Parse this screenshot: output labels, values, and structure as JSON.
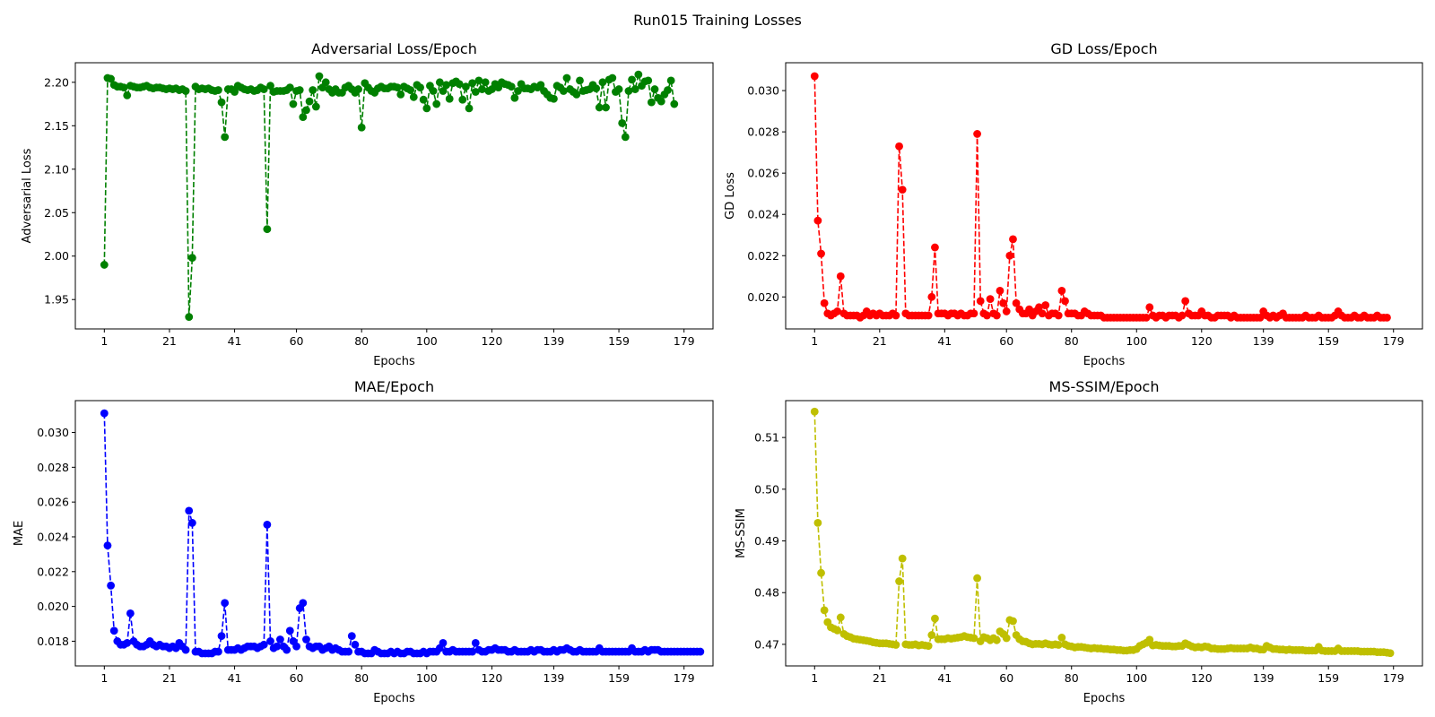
{
  "figure": {
    "title": "Run015 Training Losses"
  },
  "chart_data": [
    {
      "type": "line",
      "title": "Adversarial Loss/Epoch",
      "xlabel": "Epochs",
      "ylabel": "Adversarial Loss",
      "color": "#008000",
      "line_style": "dashed",
      "marker": "circle",
      "xlim": [
        -7.9,
        187.9
      ],
      "ylim": [
        1.9162,
        2.2225
      ],
      "xticks": [
        1,
        21,
        41,
        60,
        80,
        100,
        120,
        139,
        159,
        179
      ],
      "yticks": [
        1.95,
        2.0,
        2.05,
        2.1,
        2.15,
        2.2
      ],
      "ytick_labels": [
        "1.95",
        "2.00",
        "2.05",
        "2.10",
        "2.15",
        "2.20"
      ],
      "series": [
        {
          "values": [
            1.99,
            2.205,
            2.204,
            2.197,
            2.195,
            2.195,
            2.194,
            2.185,
            2.196,
            2.195,
            2.194,
            2.194,
            2.195,
            2.196,
            2.194,
            2.193,
            2.194,
            2.194,
            2.193,
            2.192,
            2.193,
            2.192,
            2.193,
            2.191,
            2.192,
            2.19,
            1.93,
            1.998,
            2.195,
            2.192,
            2.193,
            2.192,
            2.193,
            2.191,
            2.19,
            2.191,
            2.177,
            2.137,
            2.192,
            2.192,
            2.189,
            2.196,
            2.194,
            2.192,
            2.191,
            2.192,
            2.19,
            2.191,
            2.194,
            2.192,
            2.031,
            2.196,
            2.189,
            2.19,
            2.19,
            2.19,
            2.191,
            2.194,
            2.175,
            2.19,
            2.191,
            2.16,
            2.168,
            2.178,
            2.191,
            2.172,
            2.207,
            2.194,
            2.2,
            2.192,
            2.188,
            2.192,
            2.188,
            2.188,
            2.194,
            2.196,
            2.192,
            2.188,
            2.192,
            2.148,
            2.199,
            2.194,
            2.19,
            2.188,
            2.193,
            2.195,
            2.193,
            2.193,
            2.195,
            2.195,
            2.194,
            2.186,
            2.195,
            2.193,
            2.191,
            2.183,
            2.197,
            2.194,
            2.18,
            2.17,
            2.196,
            2.19,
            2.175,
            2.2,
            2.19,
            2.197,
            2.181,
            2.199,
            2.201,
            2.198,
            2.18,
            2.195,
            2.17,
            2.199,
            2.189,
            2.202,
            2.192,
            2.2,
            2.19,
            2.192,
            2.198,
            2.194,
            2.2,
            2.198,
            2.197,
            2.195,
            2.182,
            2.19,
            2.198,
            2.193,
            2.193,
            2.192,
            2.195,
            2.194,
            2.197,
            2.19,
            2.186,
            2.182,
            2.181,
            2.196,
            2.194,
            2.19,
            2.205,
            2.192,
            2.189,
            2.186,
            2.202,
            2.19,
            2.191,
            2.192,
            2.197,
            2.193,
            2.171,
            2.2,
            2.171,
            2.203,
            2.205,
            2.189,
            2.192,
            2.153,
            2.137,
            2.19,
            2.203,
            2.192,
            2.209,
            2.196,
            2.201,
            2.202,
            2.177,
            2.192,
            2.182,
            2.178,
            2.186,
            2.191,
            2.202,
            2.175
          ]
        }
      ]
    },
    {
      "type": "line",
      "title": "GD Loss/Epoch",
      "xlabel": "Epochs",
      "ylabel": "GD Loss",
      "color": "#ff0000",
      "line_style": "dashed",
      "marker": "circle",
      "xlim": [
        -7.9,
        187.9
      ],
      "ylim": [
        0.01845,
        0.03135
      ],
      "xticks": [
        1,
        21,
        41,
        60,
        80,
        100,
        120,
        139,
        159,
        179
      ],
      "yticks": [
        0.02,
        0.022,
        0.024,
        0.026,
        0.028,
        0.03
      ],
      "ytick_labels": [
        "0.020",
        "0.022",
        "0.024",
        "0.026",
        "0.028",
        "0.030"
      ],
      "series": [
        {
          "values": [
            0.0307,
            0.0237,
            0.0221,
            0.0197,
            0.0192,
            0.0191,
            0.0192,
            0.0193,
            0.021,
            0.0192,
            0.0191,
            0.0191,
            0.0191,
            0.0191,
            0.019,
            0.0191,
            0.0193,
            0.0191,
            0.0192,
            0.0191,
            0.0192,
            0.0191,
            0.0191,
            0.0191,
            0.0192,
            0.0191,
            0.0273,
            0.0252,
            0.0192,
            0.0191,
            0.0191,
            0.0191,
            0.0191,
            0.0191,
            0.0191,
            0.0191,
            0.02,
            0.0224,
            0.0192,
            0.0192,
            0.0192,
            0.0191,
            0.0192,
            0.0192,
            0.0191,
            0.0192,
            0.0191,
            0.0191,
            0.0192,
            0.0192,
            0.0279,
            0.0198,
            0.0192,
            0.0191,
            0.0199,
            0.0192,
            0.0191,
            0.0203,
            0.0197,
            0.0193,
            0.022,
            0.0228,
            0.0197,
            0.0194,
            0.0192,
            0.0192,
            0.0194,
            0.0191,
            0.0193,
            0.0195,
            0.0192,
            0.0196,
            0.0191,
            0.0192,
            0.0192,
            0.0191,
            0.0203,
            0.0198,
            0.0192,
            0.0192,
            0.0192,
            0.0191,
            0.0191,
            0.0193,
            0.0192,
            0.0191,
            0.0191,
            0.0191,
            0.0191,
            0.019,
            0.019,
            0.019,
            0.019,
            0.019,
            0.019,
            0.019,
            0.019,
            0.019,
            0.019,
            0.019,
            0.019,
            0.019,
            0.019,
            0.0195,
            0.0191,
            0.019,
            0.0191,
            0.0191,
            0.019,
            0.0191,
            0.0191,
            0.0191,
            0.019,
            0.0191,
            0.0198,
            0.0192,
            0.0191,
            0.0191,
            0.0191,
            0.0193,
            0.0191,
            0.0191,
            0.019,
            0.019,
            0.0191,
            0.0191,
            0.0191,
            0.0191,
            0.019,
            0.0191,
            0.019,
            0.019,
            0.019,
            0.019,
            0.019,
            0.019,
            0.019,
            0.019,
            0.0193,
            0.0191,
            0.019,
            0.0191,
            0.019,
            0.0191,
            0.0192,
            0.019,
            0.019,
            0.019,
            0.019,
            0.019,
            0.019,
            0.0191,
            0.019,
            0.019,
            0.019,
            0.0191,
            0.019,
            0.019,
            0.019,
            0.019,
            0.0191,
            0.0193,
            0.0191,
            0.019,
            0.019,
            0.019,
            0.0191,
            0.019,
            0.019,
            0.0191,
            0.019,
            0.019,
            0.019,
            0.0191,
            0.019,
            0.019,
            0.019
          ]
        }
      ]
    },
    {
      "type": "line",
      "title": "MAE/Epoch",
      "xlabel": "Epochs",
      "ylabel": "MAE",
      "color": "#0000ff",
      "line_style": "dashed",
      "marker": "circle",
      "xlim": [
        -7.9,
        187.9
      ],
      "ylim": [
        0.01658,
        0.03183
      ],
      "xticks": [
        1,
        21,
        41,
        60,
        80,
        100,
        120,
        139,
        159,
        179
      ],
      "yticks": [
        0.018,
        0.02,
        0.022,
        0.024,
        0.026,
        0.028,
        0.03
      ],
      "ytick_labels": [
        "0.018",
        "0.020",
        "0.022",
        "0.024",
        "0.026",
        "0.028",
        "0.030"
      ],
      "series": [
        {
          "values": [
            0.0311,
            0.0235,
            0.0212,
            0.0186,
            0.018,
            0.0178,
            0.0178,
            0.0179,
            0.0196,
            0.018,
            0.0178,
            0.0177,
            0.0177,
            0.0178,
            0.018,
            0.0178,
            0.0177,
            0.0178,
            0.0177,
            0.0177,
            0.0176,
            0.0177,
            0.0176,
            0.0179,
            0.0177,
            0.0175,
            0.0255,
            0.0248,
            0.0174,
            0.0174,
            0.0173,
            0.0173,
            0.0173,
            0.0173,
            0.0174,
            0.0174,
            0.0183,
            0.0202,
            0.0175,
            0.0175,
            0.0175,
            0.0176,
            0.0175,
            0.0176,
            0.0177,
            0.0177,
            0.0177,
            0.0176,
            0.0177,
            0.0178,
            0.0247,
            0.018,
            0.0176,
            0.0177,
            0.0181,
            0.0177,
            0.0175,
            0.0186,
            0.018,
            0.0177,
            0.0199,
            0.0202,
            0.0181,
            0.0177,
            0.0176,
            0.0177,
            0.0177,
            0.0175,
            0.0176,
            0.0177,
            0.0175,
            0.0176,
            0.0175,
            0.0174,
            0.0174,
            0.0174,
            0.0183,
            0.0178,
            0.0174,
            0.0174,
            0.0173,
            0.0173,
            0.0173,
            0.0175,
            0.0174,
            0.0173,
            0.0173,
            0.0173,
            0.0174,
            0.0173,
            0.0174,
            0.0173,
            0.0173,
            0.0174,
            0.0174,
            0.0173,
            0.0173,
            0.0173,
            0.0174,
            0.0173,
            0.0174,
            0.0174,
            0.0174,
            0.0176,
            0.0179,
            0.0174,
            0.0174,
            0.0175,
            0.0174,
            0.0174,
            0.0174,
            0.0174,
            0.0174,
            0.0174,
            0.0179,
            0.0175,
            0.0174,
            0.0174,
            0.0175,
            0.0175,
            0.0176,
            0.0175,
            0.0175,
            0.0175,
            0.0174,
            0.0174,
            0.0175,
            0.0174,
            0.0174,
            0.0174,
            0.0174,
            0.0175,
            0.0174,
            0.0175,
            0.0175,
            0.0174,
            0.0174,
            0.0174,
            0.0175,
            0.0174,
            0.0175,
            0.0175,
            0.0176,
            0.0175,
            0.0174,
            0.0174,
            0.0175,
            0.0174,
            0.0174,
            0.0174,
            0.0174,
            0.0174,
            0.0176,
            0.0174,
            0.0174,
            0.0174,
            0.0174,
            0.0174,
            0.0174,
            0.0174,
            0.0174,
            0.0174,
            0.0176,
            0.0174,
            0.0174,
            0.0174,
            0.0175,
            0.0174,
            0.0175,
            0.0175,
            0.0175,
            0.0174,
            0.0174,
            0.0174,
            0.0174,
            0.0174,
            0.0174,
            0.0174,
            0.0174,
            0.0174,
            0.0174,
            0.0174,
            0.0174,
            0.0174
          ]
        }
      ]
    },
    {
      "type": "line",
      "title": "MS-SSIM/Epoch",
      "xlabel": "Epochs",
      "ylabel": "MS-SSIM",
      "color": "#bfbf00",
      "line_style": "dashed",
      "marker": "circle",
      "xlim": [
        -7.9,
        187.9
      ],
      "ylim": [
        0.46583,
        0.51713
      ],
      "xticks": [
        1,
        21,
        41,
        60,
        80,
        100,
        120,
        139,
        159,
        179
      ],
      "yticks": [
        0.47,
        0.48,
        0.49,
        0.5,
        0.51
      ],
      "ytick_labels": [
        "0.47",
        "0.48",
        "0.49",
        "0.50",
        "0.51"
      ],
      "series": [
        {
          "values": [
            0.515,
            0.4935,
            0.4838,
            0.4766,
            0.4743,
            0.4733,
            0.473,
            0.4727,
            0.4752,
            0.472,
            0.4716,
            0.4714,
            0.4711,
            0.471,
            0.4709,
            0.4708,
            0.4707,
            0.4706,
            0.4704,
            0.4703,
            0.4702,
            0.4702,
            0.4702,
            0.4701,
            0.47,
            0.4699,
            0.4822,
            0.4866,
            0.47,
            0.4699,
            0.4699,
            0.47,
            0.4698,
            0.4699,
            0.4698,
            0.4697,
            0.4718,
            0.475,
            0.471,
            0.471,
            0.471,
            0.4712,
            0.4711,
            0.4712,
            0.4713,
            0.4714,
            0.4716,
            0.4714,
            0.4713,
            0.4712,
            0.4828,
            0.4706,
            0.4714,
            0.4712,
            0.4708,
            0.4712,
            0.4708,
            0.4725,
            0.472,
            0.4712,
            0.4747,
            0.4745,
            0.4718,
            0.471,
            0.4706,
            0.4705,
            0.4702,
            0.47,
            0.4701,
            0.4701,
            0.47,
            0.4702,
            0.47,
            0.4699,
            0.47,
            0.4699,
            0.4713,
            0.47,
            0.4697,
            0.4696,
            0.4694,
            0.4695,
            0.4695,
            0.4694,
            0.4693,
            0.4692,
            0.4693,
            0.4692,
            0.4692,
            0.4691,
            0.4691,
            0.469,
            0.469,
            0.4689,
            0.4689,
            0.4688,
            0.4688,
            0.4689,
            0.4689,
            0.4691,
            0.4697,
            0.47,
            0.4703,
            0.4709,
            0.4698,
            0.4699,
            0.4698,
            0.4697,
            0.4697,
            0.4697,
            0.4696,
            0.4696,
            0.4697,
            0.4697,
            0.4702,
            0.4699,
            0.4696,
            0.4694,
            0.4695,
            0.4694,
            0.4696,
            0.4695,
            0.4692,
            0.4692,
            0.4691,
            0.4691,
            0.4691,
            0.4692,
            0.4693,
            0.4692,
            0.4692,
            0.4692,
            0.4692,
            0.4692,
            0.4694,
            0.4692,
            0.4692,
            0.469,
            0.469,
            0.4697,
            0.4694,
            0.4691,
            0.4691,
            0.469,
            0.469,
            0.4689,
            0.469,
            0.4689,
            0.4689,
            0.4689,
            0.4689,
            0.4688,
            0.4688,
            0.4688,
            0.4688,
            0.4695,
            0.4688,
            0.4687,
            0.4687,
            0.4687,
            0.4687,
            0.4692,
            0.4687,
            0.4687,
            0.4687,
            0.4687,
            0.4687,
            0.4687,
            0.4686,
            0.4686,
            0.4686,
            0.4686,
            0.4686,
            0.4685,
            0.4685,
            0.4685,
            0.4684,
            0.4683
          ]
        }
      ]
    }
  ]
}
